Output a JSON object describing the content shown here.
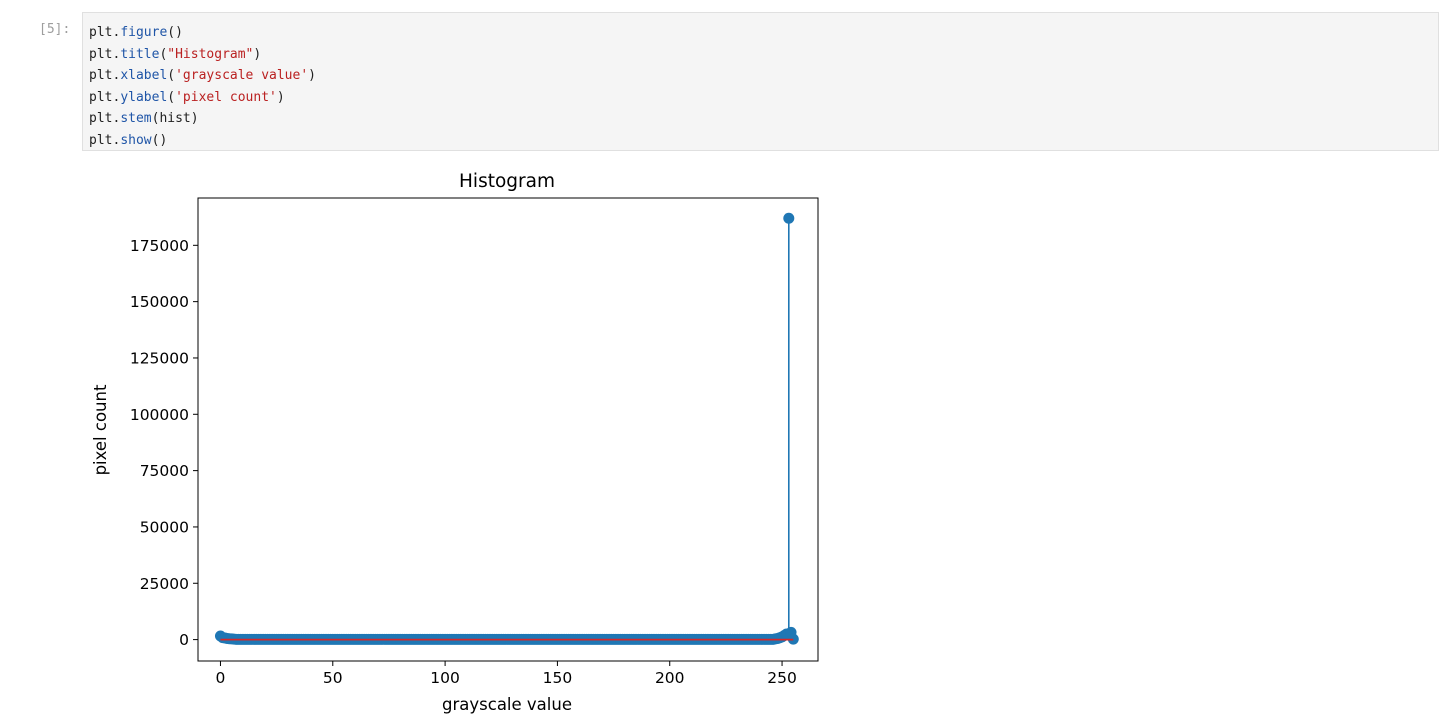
{
  "cell": {
    "prompt": "[5]:",
    "lines": [
      [
        {
          "t": "plt.",
          "c": ""
        },
        {
          "t": "figure",
          "c": "fn"
        },
        {
          "t": "()",
          "c": ""
        }
      ],
      [
        {
          "t": "plt.",
          "c": ""
        },
        {
          "t": "title",
          "c": "fn"
        },
        {
          "t": "(",
          "c": ""
        },
        {
          "t": "\"Histogram\"",
          "c": "str"
        },
        {
          "t": ")",
          "c": ""
        }
      ],
      [
        {
          "t": "plt.",
          "c": ""
        },
        {
          "t": "xlabel",
          "c": "fn"
        },
        {
          "t": "(",
          "c": ""
        },
        {
          "t": "'grayscale value'",
          "c": "str"
        },
        {
          "t": ")",
          "c": ""
        }
      ],
      [
        {
          "t": "plt.",
          "c": ""
        },
        {
          "t": "ylabel",
          "c": "fn"
        },
        {
          "t": "(",
          "c": ""
        },
        {
          "t": "'pixel count'",
          "c": "str"
        },
        {
          "t": ")",
          "c": ""
        }
      ],
      [
        {
          "t": "plt.",
          "c": ""
        },
        {
          "t": "stem",
          "c": "fn"
        },
        {
          "t": "(hist)",
          "c": ""
        }
      ],
      [
        {
          "t": "plt.",
          "c": ""
        },
        {
          "t": "show",
          "c": "fn"
        },
        {
          "t": "()",
          "c": ""
        }
      ]
    ]
  },
  "chart_data": {
    "type": "stem",
    "title": "Histogram",
    "xlabel": "grayscale value",
    "ylabel": "pixel count",
    "xlim": [
      -10,
      266
    ],
    "ylim": [
      -9500,
      196000
    ],
    "xticks": [
      0,
      50,
      100,
      150,
      200,
      250
    ],
    "xtick_labels": [
      "0",
      "50",
      "100",
      "150",
      "200",
      "250"
    ],
    "yticks": [
      0,
      25000,
      50000,
      75000,
      100000,
      125000,
      150000,
      175000
    ],
    "ytick_labels": [
      "0",
      "25000",
      "50000",
      "75000",
      "100000",
      "125000",
      "150000",
      "175000"
    ],
    "grid": false,
    "colors": {
      "stem": "#1f77b4",
      "marker": "#1f77b4",
      "baseline": "#d62728"
    },
    "points": {
      "default_value": 100,
      "overrides": [
        {
          "x": 0,
          "y": 1600
        },
        {
          "x": 1,
          "y": 900
        },
        {
          "x": 2,
          "y": 700
        },
        {
          "x": 3,
          "y": 500
        },
        {
          "x": 4,
          "y": 400
        },
        {
          "x": 5,
          "y": 300
        },
        {
          "x": 6,
          "y": 200
        },
        {
          "x": 247,
          "y": 300
        },
        {
          "x": 248,
          "y": 500
        },
        {
          "x": 249,
          "y": 800
        },
        {
          "x": 250,
          "y": 1200
        },
        {
          "x": 251,
          "y": 1800
        },
        {
          "x": 252,
          "y": 2500
        },
        {
          "x": 253,
          "y": 187000
        },
        {
          "x": 254,
          "y": 3200
        },
        {
          "x": 255,
          "y": 200
        }
      ],
      "count": 256
    }
  }
}
